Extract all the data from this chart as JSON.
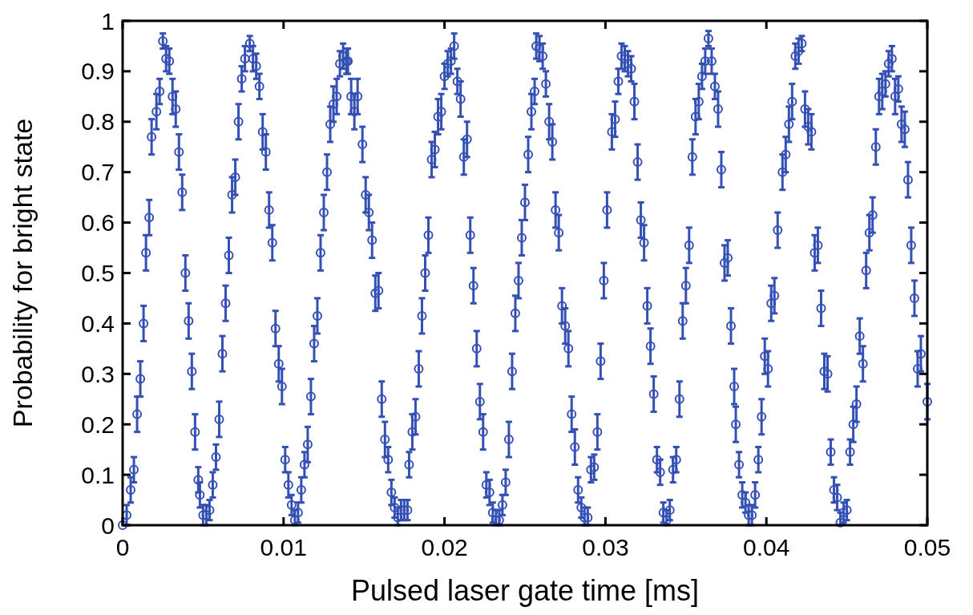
{
  "chart_data": {
    "type": "scatter",
    "xlabel": "Pulsed laser gate time [ms]",
    "ylabel": "Probability for bright state",
    "xlim": [
      0,
      0.05
    ],
    "xticks": [
      0,
      0.01,
      0.02,
      0.03,
      0.04,
      0.05
    ],
    "ylim": [
      0,
      1
    ],
    "yticks": [
      0,
      0.1,
      0.2,
      0.3,
      0.4,
      0.5,
      0.6,
      0.7,
      0.8,
      0.9,
      1
    ],
    "grid": false,
    "marker": "circle",
    "series": [
      {
        "color": "#3450b4",
        "x": [
          0,
          0.00025,
          0.0005,
          0.0007,
          0.0009,
          0.0011,
          0.0013,
          0.00145,
          0.00165,
          0.0018,
          0.0021,
          0.0023,
          0.0025,
          0.0027,
          0.0029,
          0.0031,
          0.0033,
          0.0035,
          0.0037,
          0.0039,
          0.0041,
          0.0043,
          0.0045,
          0.0047,
          0.0048,
          0.005,
          0.0052,
          0.0054,
          0.0056,
          0.0058,
          0.006,
          0.0062,
          0.0064,
          0.0066,
          0.0068,
          0.007,
          0.0072,
          0.0074,
          0.0076,
          0.0079,
          0.0081,
          0.0083,
          0.0085,
          0.0087,
          0.0089,
          0.0091,
          0.0093,
          0.0095,
          0.0097,
          0.0099,
          0.0101,
          0.0103,
          0.0105,
          0.0107,
          0.0109,
          0.0111,
          0.0113,
          0.0115,
          0.0117,
          0.0119,
          0.0121,
          0.0123,
          0.0125,
          0.0127,
          0.0129,
          0.0131,
          0.0133,
          0.0135,
          0.0137,
          0.0139,
          0.014,
          0.0142,
          0.0144,
          0.0146,
          0.0149,
          0.0151,
          0.0153,
          0.0155,
          0.0157,
          0.0159,
          0.0161,
          0.0163,
          0.0165,
          0.0167,
          0.0169,
          0.0171,
          0.0173,
          0.0175,
          0.0177,
          0.0178,
          0.018,
          0.0182,
          0.0184,
          0.0186,
          0.0188,
          0.019,
          0.0192,
          0.0194,
          0.0196,
          0.0198,
          0.02,
          0.0202,
          0.0204,
          0.0206,
          0.0208,
          0.021,
          0.0212,
          0.0214,
          0.0216,
          0.0218,
          0.022,
          0.0222,
          0.0224,
          0.0226,
          0.0228,
          0.023,
          0.0232,
          0.0234,
          0.0236,
          0.0238,
          0.024,
          0.0242,
          0.0244,
          0.0246,
          0.0248,
          0.025,
          0.0252,
          0.0254,
          0.0256,
          0.0257,
          0.0259,
          0.0261,
          0.0263,
          0.0265,
          0.0267,
          0.0269,
          0.0271,
          0.0273,
          0.0275,
          0.0277,
          0.0279,
          0.0281,
          0.0283,
          0.0285,
          0.0287,
          0.0289,
          0.0291,
          0.0293,
          0.0295,
          0.0297,
          0.0299,
          0.0301,
          0.0304,
          0.0306,
          0.0308,
          0.031,
          0.0312,
          0.0314,
          0.0316,
          0.0318,
          0.032,
          0.0322,
          0.0324,
          0.0326,
          0.0328,
          0.033,
          0.0332,
          0.0334,
          0.0336,
          0.0338,
          0.034,
          0.0342,
          0.0344,
          0.0346,
          0.0348,
          0.035,
          0.0352,
          0.0354,
          0.0356,
          0.0358,
          0.036,
          0.0362,
          0.0364,
          0.0366,
          0.0368,
          0.037,
          0.0372,
          0.0374,
          0.0376,
          0.0378,
          0.038,
          0.0381,
          0.0383,
          0.0385,
          0.0387,
          0.0389,
          0.0391,
          0.0393,
          0.0395,
          0.0397,
          0.0399,
          0.0401,
          0.0403,
          0.0405,
          0.0407,
          0.041,
          0.0412,
          0.0414,
          0.0416,
          0.0418,
          0.042,
          0.0422,
          0.0424,
          0.0426,
          0.0428,
          0.043,
          0.0432,
          0.0434,
          0.0436,
          0.0438,
          0.044,
          0.0442,
          0.0444,
          0.0446,
          0.0448,
          0.045,
          0.0452,
          0.0454,
          0.0456,
          0.0458,
          0.046,
          0.0462,
          0.0464,
          0.0466,
          0.0468,
          0.047,
          0.0472,
          0.0474,
          0.0476,
          0.0478,
          0.048,
          0.0482,
          0.0484,
          0.0486,
          0.0488,
          0.049,
          0.0492,
          0.0494,
          0.0496,
          0.05
        ],
        "values": [
          0,
          0.02,
          0.07,
          0.11,
          0.22,
          0.29,
          0.4,
          0.54,
          0.61,
          0.77,
          0.82,
          0.86,
          0.96,
          0.925,
          0.92,
          0.85,
          0.825,
          0.74,
          0.66,
          0.5,
          0.405,
          0.305,
          0.185,
          0.09,
          0.06,
          0.02,
          0.02,
          0.03,
          0.08,
          0.135,
          0.21,
          0.34,
          0.44,
          0.535,
          0.655,
          0.69,
          0.8,
          0.885,
          0.925,
          0.955,
          0.925,
          0.91,
          0.87,
          0.78,
          0.74,
          0.625,
          0.56,
          0.39,
          0.32,
          0.275,
          0.13,
          0.08,
          0.04,
          0.01,
          0.025,
          0.07,
          0.12,
          0.16,
          0.255,
          0.36,
          0.415,
          0.54,
          0.62,
          0.7,
          0.795,
          0.835,
          0.85,
          0.915,
          0.93,
          0.92,
          0.92,
          0.85,
          0.82,
          0.85,
          0.755,
          0.655,
          0.62,
          0.565,
          0.46,
          0.465,
          0.25,
          0.17,
          0.13,
          0.065,
          0.035,
          0.015,
          0.03,
          0.03,
          0.03,
          0.12,
          0.185,
          0.215,
          0.31,
          0.415,
          0.5,
          0.575,
          0.725,
          0.745,
          0.81,
          0.82,
          0.89,
          0.915,
          0.92,
          0.95,
          0.88,
          0.845,
          0.73,
          0.765,
          0.575,
          0.475,
          0.35,
          0.245,
          0.185,
          0.08,
          0.065,
          0.025,
          0.01,
          0.01,
          0.04,
          0.085,
          0.17,
          0.305,
          0.42,
          0.485,
          0.57,
          0.64,
          0.735,
          0.82,
          0.86,
          0.95,
          0.945,
          0.93,
          0.875,
          0.8,
          0.76,
          0.625,
          0.58,
          0.435,
          0.395,
          0.35,
          0.22,
          0.155,
          0.07,
          0.035,
          0.015,
          0.015,
          0.11,
          0.115,
          0.185,
          0.325,
          0.485,
          0.625,
          0.78,
          0.805,
          0.88,
          0.93,
          0.925,
          0.915,
          0.905,
          0.84,
          0.72,
          0.605,
          0.56,
          0.435,
          0.355,
          0.26,
          0.13,
          0.105,
          0.025,
          0.01,
          0.03,
          0.11,
          0.13,
          0.25,
          0.405,
          0.475,
          0.555,
          0.73,
          0.81,
          0.84,
          0.89,
          0.92,
          0.965,
          0.92,
          0.87,
          0.825,
          0.705,
          0.52,
          0.53,
          0.395,
          0.275,
          0.2,
          0.12,
          0.06,
          0.045,
          0.02,
          0.02,
          0.06,
          0.13,
          0.215,
          0.335,
          0.31,
          0.44,
          0.455,
          0.585,
          0.7,
          0.735,
          0.795,
          0.84,
          0.93,
          0.94,
          0.955,
          0.825,
          0.79,
          0.78,
          0.54,
          0.555,
          0.43,
          0.305,
          0.3,
          0.145,
          0.07,
          0.055,
          0.005,
          0.025,
          0.03,
          0.145,
          0.2,
          0.24,
          0.375,
          0.32,
          0.505,
          0.58,
          0.615,
          0.75,
          0.85,
          0.86,
          0.875,
          0.915,
          0.925,
          0.85,
          0.865,
          0.795,
          0.785,
          0.685,
          0.555,
          0.45,
          0.31,
          0.34,
          0.245
        ],
        "errors": [
          null,
          0.02,
          0.025,
          0.025,
          0.035,
          0.035,
          0.035,
          0.035,
          0.035,
          0.035,
          0.035,
          0.025,
          0.015,
          0.025,
          0.025,
          0.035,
          0.035,
          0.035,
          0.035,
          0.035,
          0.035,
          0.035,
          0.035,
          0.025,
          0.025,
          0.02,
          0.02,
          0.02,
          0.025,
          0.025,
          0.035,
          0.035,
          0.035,
          0.035,
          0.035,
          0.035,
          0.035,
          0.025,
          0.025,
          0.015,
          0.025,
          0.025,
          0.025,
          0.035,
          0.035,
          0.035,
          0.035,
          0.035,
          0.035,
          0.035,
          0.025,
          0.025,
          0.02,
          [
            0,
            0.03
          ],
          0.02,
          0.025,
          0.025,
          0.035,
          0.035,
          0.035,
          0.035,
          0.035,
          0.035,
          0.035,
          0.035,
          0.035,
          0.035,
          0.025,
          0.025,
          0.025,
          0.025,
          0.035,
          0.035,
          0.035,
          0.035,
          0.035,
          0.035,
          0.035,
          0.035,
          0.035,
          0.035,
          0.035,
          0.025,
          0.025,
          0.02,
          [
            0,
            0.035
          ],
          0.02,
          0.02,
          0.02,
          0.025,
          0.035,
          0.035,
          0.035,
          0.035,
          0.035,
          0.035,
          0.035,
          0.035,
          0.035,
          0.035,
          0.025,
          0.025,
          0.025,
          0.025,
          0.025,
          0.035,
          0.035,
          0.035,
          0.035,
          0.035,
          0.035,
          0.035,
          0.035,
          0.025,
          0.025,
          0.02,
          [
            0,
            0.03
          ],
          [
            0,
            0.03
          ],
          0.02,
          0.025,
          0.035,
          0.035,
          0.035,
          0.035,
          0.035,
          0.035,
          0.035,
          0.035,
          0.025,
          0.025,
          0.025,
          0.025,
          0.025,
          0.035,
          0.035,
          0.035,
          0.035,
          0.035,
          0.035,
          0.035,
          0.035,
          0.035,
          0.025,
          0.02,
          [
            0,
            0.035
          ],
          [
            0,
            0.035
          ],
          0.025,
          0.025,
          0.035,
          0.035,
          0.035,
          0.035,
          0.035,
          0.035,
          0.025,
          0.025,
          0.025,
          0.025,
          0.025,
          0.035,
          0.035,
          0.035,
          0.035,
          0.035,
          0.035,
          0.035,
          0.025,
          0.025,
          0.02,
          [
            0,
            0.03
          ],
          0.02,
          0.025,
          0.025,
          0.035,
          0.035,
          0.035,
          0.035,
          0.035,
          0.035,
          0.035,
          0.025,
          0.025,
          0.015,
          0.025,
          0.025,
          0.035,
          0.035,
          0.035,
          0.035,
          0.035,
          0.035,
          0.035,
          0.025,
          0.025,
          0.02,
          0.02,
          0.02,
          0.025,
          0.025,
          0.035,
          0.035,
          0.035,
          0.035,
          0.035,
          0.035,
          0.035,
          0.035,
          0.035,
          0.035,
          0.025,
          0.025,
          0.015,
          0.035,
          0.035,
          0.035,
          0.035,
          0.035,
          0.035,
          0.035,
          0.035,
          0.025,
          0.025,
          0.025,
          [
            0,
            0.025
          ],
          0.02,
          0.02,
          0.025,
          0.035,
          0.035,
          0.035,
          0.035,
          0.035,
          0.035,
          0.035,
          0.035,
          0.035,
          0.035,
          0.025,
          0.025,
          0.025,
          0.035,
          0.025,
          0.035,
          0.035,
          0.035,
          0.035,
          0.035,
          0.035,
          0.035,
          0.035
        ]
      }
    ]
  }
}
